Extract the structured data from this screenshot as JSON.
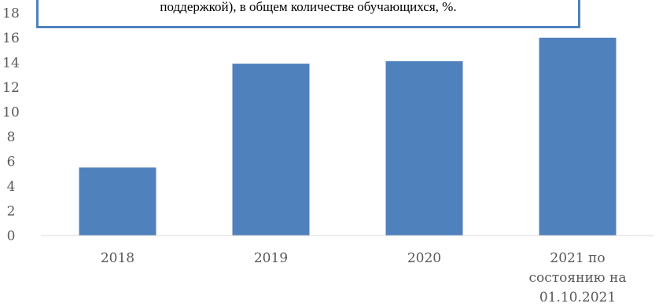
{
  "chart_data": {
    "type": "bar",
    "title": "поддержкой), в общем количестве обучающихся, %.",
    "categories": [
      [
        "2018"
      ],
      [
        "2019"
      ],
      [
        "2020"
      ],
      [
        "2021 по",
        "состоянию на",
        "01.10.2021"
      ]
    ],
    "values": [
      5.5,
      13.9,
      14.1,
      16.0
    ],
    "yticks": [
      "0",
      "2",
      "4",
      "6",
      "8",
      "10",
      "12",
      "14",
      "16",
      "18"
    ],
    "ylim": [
      0,
      18
    ],
    "grid": false,
    "legend": "none",
    "colors": {
      "bar": "#4f81bd",
      "axis": "#d9d9d9",
      "text": "#595959"
    }
  }
}
